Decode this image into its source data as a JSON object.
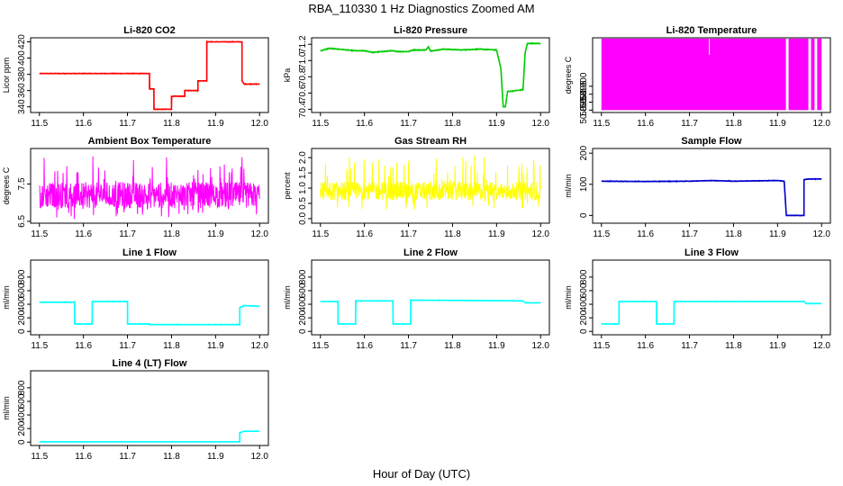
{
  "title": "RBA_110330  1 Hz Diagnostics Zoomed AM",
  "xlabel": "Hour of Day (UTC)",
  "chart_data": [
    {
      "type": "line",
      "title": "Li-820 CO2",
      "ylabel": "Licor ppm",
      "color": "#ff0000",
      "xlim": [
        11.48,
        12.02
      ],
      "ylim": [
        333,
        425
      ],
      "yticks": [
        "340",
        "360",
        "380",
        "400",
        "420"
      ],
      "xticks": [
        "11.5",
        "11.6",
        "11.7",
        "11.8",
        "11.9",
        "12.0"
      ],
      "noise": 0.6,
      "x": [
        11.5,
        11.75,
        11.75,
        11.76,
        11.76,
        11.8,
        11.8,
        11.83,
        11.83,
        11.86,
        11.86,
        11.88,
        11.88,
        11.93,
        11.96,
        11.96,
        11.965,
        12.0
      ],
      "y": [
        381,
        381,
        362,
        362,
        337,
        337,
        353,
        353,
        360,
        360,
        372,
        372,
        420,
        420,
        420,
        372,
        368,
        368
      ]
    },
    {
      "type": "line",
      "title": "Li-820 Pressure",
      "ylabel": "kPa",
      "color": "#00cc00",
      "xlim": [
        11.48,
        12.02
      ],
      "ylim": [
        70.36,
        71.28
      ],
      "yticks": [
        "70.4",
        "70.6",
        "70.8",
        "71.0",
        "71.2"
      ],
      "xticks": [
        "11.5",
        "11.6",
        "11.7",
        "11.8",
        "11.9",
        "12.0"
      ],
      "noise": 0.008,
      "x": [
        11.5,
        11.52,
        11.54,
        11.56,
        11.58,
        11.6,
        11.62,
        11.66,
        11.68,
        11.7,
        11.71,
        11.74,
        11.745,
        11.75,
        11.755,
        11.78,
        11.82,
        11.86,
        11.9,
        11.91,
        11.915,
        11.92,
        11.925,
        11.93,
        11.96,
        11.965,
        11.97,
        11.99,
        12.0
      ],
      "y": [
        71.12,
        71.15,
        71.14,
        71.13,
        71.12,
        71.12,
        71.1,
        71.12,
        71.11,
        71.11,
        71.13,
        71.13,
        71.17,
        71.12,
        71.12,
        71.14,
        71.13,
        71.14,
        71.13,
        70.9,
        70.43,
        70.43,
        70.62,
        70.62,
        70.64,
        71.1,
        71.21,
        71.21,
        71.21
      ]
    },
    {
      "type": "fill",
      "title": "Li-820 Temperature",
      "ylabel": "degrees C",
      "color": "#ff00ff",
      "xlim": [
        11.48,
        12.02
      ],
      "ylim": [
        50.8835,
        50.9305
      ],
      "yticks": [
        "50.885",
        "50.890",
        "50.895",
        "50.900"
      ],
      "xticks": [
        "11.5",
        "11.6",
        "11.7",
        "11.8",
        "11.9",
        "12.0"
      ],
      "fill_range": [
        50.885,
        50.93
      ],
      "segments": [
        [
          11.5,
          11.919
        ],
        [
          11.925,
          11.97
        ],
        [
          11.976,
          11.984
        ],
        [
          11.99,
          12.0
        ]
      ],
      "spikes": [
        11.745
      ]
    },
    {
      "type": "noise",
      "title": "Ambient Box Temperature",
      "ylabel": "degrees C",
      "color": "#ff00ff",
      "xlim": [
        11.48,
        12.02
      ],
      "ylim": [
        6.45,
        8.45
      ],
      "yticks": [
        "6.5",
        "7.5"
      ],
      "xticks": [
        "11.5",
        "11.6",
        "11.7",
        "11.8",
        "11.9",
        "12.0"
      ],
      "base": 7.2,
      "spread": 0.35,
      "extreme_lo": 6.55,
      "extreme_hi": 8.35
    },
    {
      "type": "noise",
      "title": "Gas Stream RH",
      "ylabel": "percent",
      "color": "#ffff00",
      "xlim": [
        11.48,
        12.02
      ],
      "ylim": [
        -0.15,
        2.3
      ],
      "yticks": [
        "0.0",
        "0.5",
        "1.0",
        "1.5",
        "2.0"
      ],
      "xticks": [
        "11.5",
        "11.6",
        "11.7",
        "11.8",
        "11.9",
        "12.0"
      ],
      "base": 0.9,
      "spread": 0.3,
      "extreme_lo": 0.3,
      "extreme_hi": 2.2
    },
    {
      "type": "line",
      "title": "Sample Flow",
      "ylabel": "ml/min",
      "color": "#0000cc",
      "xlim": [
        11.48,
        12.02
      ],
      "ylim": [
        -25,
        215
      ],
      "yticks": [
        "0",
        "100",
        "200"
      ],
      "xticks": [
        "11.5",
        "11.6",
        "11.7",
        "11.8",
        "11.9",
        "12.0"
      ],
      "noise": 1.5,
      "x": [
        11.5,
        11.6,
        11.7,
        11.75,
        11.8,
        11.9,
        11.915,
        11.92,
        11.925,
        11.96,
        11.96,
        11.97,
        12.0
      ],
      "y": [
        110,
        109,
        110,
        112,
        110,
        112,
        110,
        0,
        0,
        0,
        115,
        117,
        117
      ]
    },
    {
      "type": "line",
      "title": "Line 1 Flow",
      "ylabel": "ml/min",
      "color": "#00ffff",
      "xlim": [
        11.48,
        12.02
      ],
      "ylim": [
        -50,
        1050
      ],
      "yticks": [
        "0",
        "200",
        "400",
        "600",
        "800"
      ],
      "xticks": [
        "11.5",
        "11.6",
        "11.7",
        "11.8",
        "11.9",
        "12.0"
      ],
      "noise": 6,
      "x": [
        11.5,
        11.58,
        11.58,
        11.62,
        11.62,
        11.7,
        11.7,
        11.75,
        11.75,
        11.955,
        11.955,
        11.965,
        12.0
      ],
      "y": [
        430,
        430,
        110,
        110,
        440,
        440,
        110,
        110,
        100,
        100,
        350,
        380,
        370
      ]
    },
    {
      "type": "line",
      "title": "Line 2 Flow",
      "ylabel": "ml/min",
      "color": "#00ffff",
      "xlim": [
        11.48,
        12.02
      ],
      "ylim": [
        -50,
        1050
      ],
      "yticks": [
        "0",
        "200",
        "400",
        "600",
        "800"
      ],
      "xticks": [
        "11.5",
        "11.6",
        "11.7",
        "11.8",
        "11.9",
        "12.0"
      ],
      "noise": 5,
      "x": [
        11.5,
        11.54,
        11.54,
        11.58,
        11.58,
        11.665,
        11.665,
        11.705,
        11.705,
        11.96,
        11.965,
        12.0
      ],
      "y": [
        440,
        440,
        110,
        110,
        450,
        450,
        110,
        110,
        460,
        450,
        420,
        420
      ]
    },
    {
      "type": "line",
      "title": "Line 3 Flow",
      "ylabel": "ml/min",
      "color": "#00ffff",
      "xlim": [
        11.48,
        12.02
      ],
      "ylim": [
        -50,
        1050
      ],
      "yticks": [
        "0",
        "200",
        "400",
        "600",
        "800"
      ],
      "xticks": [
        "11.5",
        "11.6",
        "11.7",
        "11.8",
        "11.9",
        "12.0"
      ],
      "noise": 5,
      "x": [
        11.5,
        11.54,
        11.54,
        11.625,
        11.625,
        11.665,
        11.665,
        11.96,
        11.965,
        12.0
      ],
      "y": [
        110,
        110,
        440,
        440,
        110,
        110,
        440,
        440,
        410,
        410
      ]
    },
    {
      "type": "line",
      "title": "Line 4 (LT) Flow",
      "ylabel": "ml/min",
      "color": "#00ffff",
      "xlim": [
        11.48,
        12.02
      ],
      "ylim": [
        -50,
        1050
      ],
      "yticks": [
        "0",
        "200",
        "400",
        "600",
        "800"
      ],
      "xticks": [
        "11.5",
        "11.6",
        "11.7",
        "11.8",
        "11.9",
        "12.0"
      ],
      "noise": 2,
      "x": [
        11.5,
        11.955,
        11.955,
        11.965,
        12.0
      ],
      "y": [
        5,
        5,
        140,
        160,
        160
      ]
    }
  ]
}
